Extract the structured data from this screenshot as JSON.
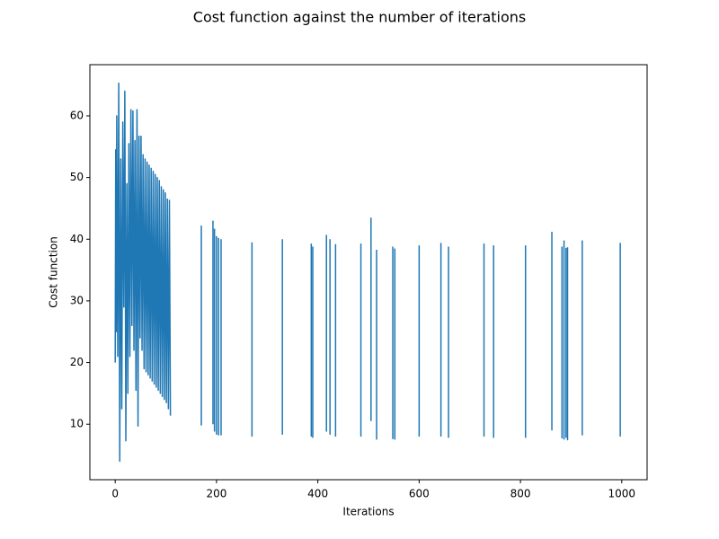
{
  "chart_data": {
    "type": "line",
    "title": "Cost function against the number of iterations",
    "x_label": "Iterations",
    "y_label": "Cost function",
    "xlim": [
      -50,
      1050
    ],
    "ylim": [
      1.0,
      68.3
    ],
    "xticks": [
      0,
      200,
      400,
      600,
      800,
      1000
    ],
    "yticks": [
      10,
      20,
      30,
      40,
      50,
      60
    ],
    "grid": false,
    "series": [
      {
        "color": "#1f77b4",
        "x": [
          0,
          1,
          2,
          3,
          5,
          7,
          9,
          11,
          13,
          15,
          17,
          19,
          21,
          23,
          25,
          27,
          29,
          31,
          33,
          35,
          37,
          39,
          41,
          43,
          45,
          47,
          49,
          51,
          53,
          55,
          57,
          59,
          61,
          63,
          65,
          67,
          69,
          71,
          73,
          75,
          77,
          79,
          81,
          83,
          85,
          87,
          89,
          91,
          93,
          95,
          97,
          99,
          101,
          103,
          105,
          107,
          109,
          null,
          170,
          170,
          null,
          193,
          193,
          null,
          196,
          196,
          null,
          200,
          200,
          null,
          204,
          204,
          null,
          209,
          209,
          null,
          270,
          270,
          null,
          330,
          330,
          null,
          387,
          387,
          null,
          390,
          390,
          null,
          417,
          417,
          null,
          424,
          424,
          null,
          435,
          435,
          null,
          485,
          485,
          null,
          505,
          505,
          null,
          516,
          516,
          null,
          548,
          548,
          null,
          552,
          552,
          null,
          600,
          600,
          null,
          643,
          643,
          null,
          658,
          658,
          null,
          728,
          728,
          null,
          747,
          747,
          null,
          810,
          810,
          null,
          862,
          862,
          null,
          882,
          882,
          null,
          886,
          886,
          null,
          890,
          890,
          null,
          893,
          893,
          null,
          922,
          922,
          null,
          997,
          997
        ],
        "values": [
          20,
          54.5,
          25,
          60,
          21,
          65.3,
          4,
          53,
          12.5,
          59,
          29,
          64,
          7.3,
          49,
          15,
          55.5,
          21,
          61,
          26,
          60.8,
          22,
          56,
          15.5,
          61,
          9.7,
          56.7,
          24,
          56.7,
          22,
          53.7,
          19,
          53,
          18.5,
          52.5,
          18,
          52,
          17.5,
          51.5,
          17,
          51,
          16.5,
          50.5,
          16,
          50,
          15.5,
          49.5,
          15,
          48.5,
          14.5,
          48,
          14,
          47.5,
          13.5,
          46.5,
          12.5,
          46.3,
          11.4,
          null,
          9.8,
          42.2,
          null,
          10,
          43,
          null,
          8.8,
          41.7,
          null,
          8.3,
          40.5,
          null,
          8.2,
          40.2,
          null,
          8.2,
          40,
          null,
          8,
          39.5,
          null,
          8.3,
          40,
          null,
          8,
          39.3,
          null,
          7.8,
          38.8,
          null,
          8.8,
          40.7,
          null,
          8.3,
          40,
          null,
          8,
          39.2,
          null,
          8,
          39.3,
          null,
          10.5,
          43.5,
          null,
          7.5,
          38.3,
          null,
          7.6,
          38.8,
          null,
          7.5,
          38.5,
          null,
          8,
          39,
          null,
          8,
          39.4,
          null,
          7.8,
          38.8,
          null,
          8,
          39.3,
          null,
          7.8,
          39,
          null,
          7.8,
          39,
          null,
          9,
          41.2,
          null,
          7.7,
          38.8,
          null,
          7.5,
          39.8,
          null,
          7.8,
          38.6,
          null,
          7.4,
          38.7,
          null,
          8.2,
          39.8,
          null,
          8,
          39.4
        ]
      }
    ]
  }
}
